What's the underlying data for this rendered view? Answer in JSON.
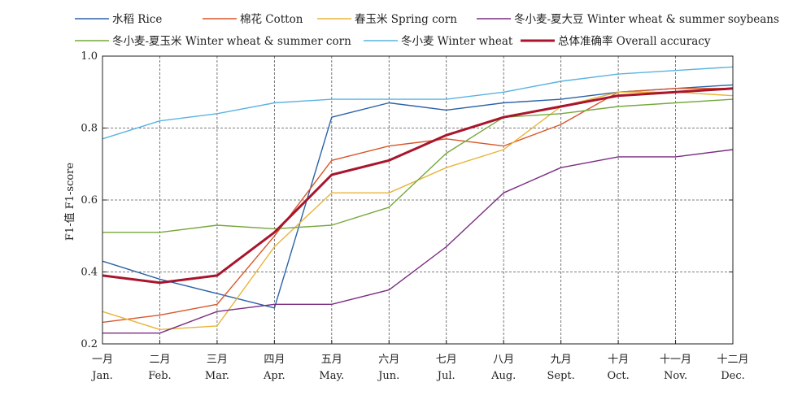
{
  "chart_data": {
    "type": "line",
    "ylabel": "F1-值 F1-score",
    "ylim": [
      0.2,
      1.0
    ],
    "yticks": [
      "0.2",
      "0.4",
      "0.6",
      "0.8",
      "1.0"
    ],
    "categories": [
      {
        "zh": "一月",
        "en": "Jan."
      },
      {
        "zh": "二月",
        "en": "Feb."
      },
      {
        "zh": "三月",
        "en": "Mar."
      },
      {
        "zh": "四月",
        "en": "Apr."
      },
      {
        "zh": "五月",
        "en": "May."
      },
      {
        "zh": "六月",
        "en": "Jun."
      },
      {
        "zh": "七月",
        "en": "Jul."
      },
      {
        "zh": "八月",
        "en": "Aug."
      },
      {
        "zh": "九月",
        "en": "Sept."
      },
      {
        "zh": "十月",
        "en": "Oct."
      },
      {
        "zh": "十一月",
        "en": "Nov."
      },
      {
        "zh": "十二月",
        "en": "Dec."
      }
    ],
    "grid": "horizontal dashed",
    "legend_position": "top",
    "series": [
      {
        "name": "水稻 Rice",
        "color": "#2b62a8",
        "bold": false,
        "values": [
          0.43,
          0.38,
          0.34,
          0.3,
          0.83,
          0.87,
          0.85,
          0.87,
          0.88,
          0.9,
          0.91,
          0.92
        ]
      },
      {
        "name": "棉花 Cotton",
        "color": "#d8572a",
        "bold": false,
        "values": [
          0.26,
          0.28,
          0.31,
          0.5,
          0.71,
          0.75,
          0.77,
          0.75,
          0.81,
          0.9,
          0.91,
          0.91
        ]
      },
      {
        "name": "春玉米 Spring corn",
        "color": "#e8b43a",
        "bold": false,
        "values": [
          0.29,
          0.24,
          0.25,
          0.47,
          0.62,
          0.62,
          0.69,
          0.74,
          0.86,
          0.9,
          0.9,
          0.89
        ]
      },
      {
        "name": "冬小麦-夏大豆 Winter wheat & summer soybeans",
        "color": "#7b2d82",
        "bold": false,
        "values": [
          0.23,
          0.23,
          0.29,
          0.31,
          0.31,
          0.35,
          0.47,
          0.62,
          0.69,
          0.72,
          0.72,
          0.74
        ]
      },
      {
        "name": "冬小麦-夏玉米 Winter wheat & summer corn",
        "color": "#76a83c",
        "bold": false,
        "values": [
          0.51,
          0.51,
          0.53,
          0.52,
          0.53,
          0.58,
          0.73,
          0.83,
          0.84,
          0.86,
          0.87,
          0.88
        ]
      },
      {
        "name": "冬小麦 Winter wheat",
        "color": "#5ab3e0",
        "bold": false,
        "values": [
          0.77,
          0.82,
          0.84,
          0.87,
          0.88,
          0.88,
          0.88,
          0.9,
          0.93,
          0.95,
          0.96,
          0.97
        ]
      },
      {
        "name": "总体准确率 Overall accuracy",
        "color": "#a8152c",
        "bold": true,
        "values": [
          0.39,
          0.37,
          0.39,
          0.51,
          0.67,
          0.71,
          0.78,
          0.83,
          0.86,
          0.89,
          0.9,
          0.91
        ]
      }
    ]
  }
}
